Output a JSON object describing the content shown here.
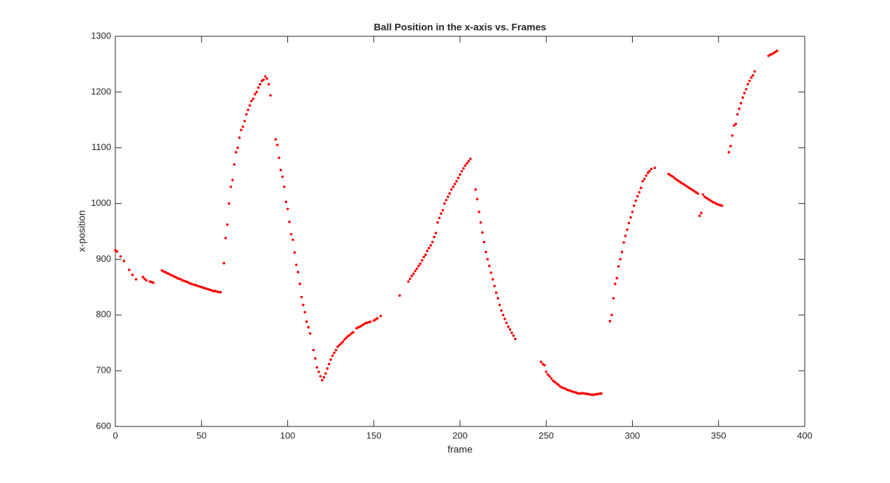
{
  "chart_data": {
    "type": "scatter",
    "title": "Ball Position in the x-axis vs. Frames",
    "x_label": "frame",
    "y_label": "x-position",
    "color": "#ff0000",
    "x": [
      0,
      1,
      3,
      5,
      8,
      10,
      12,
      16,
      17,
      18,
      20,
      21,
      22,
      27,
      28,
      29,
      30,
      31,
      32,
      33,
      34,
      35,
      36,
      37,
      38,
      39,
      40,
      41,
      42,
      43,
      44,
      45,
      46,
      47,
      48,
      49,
      50,
      51,
      52,
      53,
      54,
      55,
      56,
      57,
      58,
      59,
      60,
      61,
      63,
      64,
      65,
      66,
      67,
      68,
      69,
      70,
      71,
      72,
      73,
      74,
      75,
      76,
      77,
      78,
      79,
      80,
      81,
      82,
      83,
      84,
      85,
      86,
      87,
      88,
      89,
      90,
      93,
      94,
      95,
      96,
      97,
      98,
      99,
      100,
      101,
      102,
      103,
      104,
      105,
      106,
      107,
      108,
      109,
      110,
      111,
      112,
      113,
      115,
      116,
      117,
      118,
      119,
      120,
      121,
      122,
      123,
      124,
      125,
      126,
      127,
      128,
      129,
      130,
      131,
      132,
      133,
      134,
      135,
      136,
      137,
      138,
      140,
      141,
      142,
      143,
      144,
      145,
      146,
      147,
      148,
      150,
      151,
      152,
      154,
      165,
      170,
      171,
      172,
      173,
      174,
      175,
      176,
      177,
      178,
      179,
      180,
      181,
      182,
      183,
      184,
      185,
      186,
      187,
      188,
      189,
      190,
      191,
      192,
      193,
      194,
      195,
      196,
      197,
      198,
      199,
      200,
      201,
      202,
      203,
      204,
      205,
      206,
      209,
      210,
      211,
      212,
      213,
      214,
      215,
      216,
      217,
      218,
      219,
      220,
      221,
      222,
      223,
      224,
      225,
      226,
      227,
      228,
      229,
      230,
      231,
      232,
      247,
      248,
      249,
      250,
      251,
      252,
      253,
      254,
      255,
      256,
      257,
      258,
      259,
      260,
      261,
      262,
      263,
      264,
      265,
      266,
      267,
      268,
      269,
      270,
      271,
      272,
      273,
      274,
      275,
      276,
      277,
      278,
      279,
      280,
      281,
      282,
      287,
      288,
      289,
      290,
      291,
      292,
      293,
      294,
      295,
      296,
      297,
      298,
      299,
      300,
      301,
      302,
      303,
      304,
      305,
      306,
      307,
      308,
      309,
      310,
      311,
      313,
      321,
      322,
      323,
      324,
      325,
      326,
      327,
      328,
      329,
      330,
      331,
      332,
      333,
      334,
      335,
      336,
      337,
      338,
      339,
      340,
      341,
      342,
      343,
      344,
      345,
      346,
      347,
      348,
      349,
      350,
      351,
      352,
      356,
      357,
      358,
      359,
      360,
      361,
      362,
      363,
      364,
      365,
      366,
      367,
      368,
      369,
      370,
      371,
      379,
      380,
      381,
      382,
      383,
      384
    ],
    "values": [
      916,
      914,
      905,
      897,
      881,
      872,
      864,
      868,
      865,
      862,
      860,
      859,
      858,
      880,
      878,
      877,
      875,
      874,
      872,
      871,
      869,
      868,
      866,
      865,
      864,
      862,
      861,
      860,
      859,
      857,
      856,
      855,
      854,
      853,
      852,
      851,
      850,
      849,
      848,
      847,
      846,
      845,
      844,
      843,
      843,
      842,
      841,
      841,
      893,
      938,
      962,
      1000,
      1030,
      1042,
      1070,
      1092,
      1100,
      1118,
      1132,
      1138,
      1148,
      1160,
      1168,
      1176,
      1184,
      1188,
      1196,
      1200,
      1208,
      1214,
      1220,
      1222,
      1228,
      1224,
      1214,
      1194,
      1115,
      1105,
      1082,
      1060,
      1048,
      1030,
      1003,
      990,
      967,
      945,
      935,
      912,
      890,
      877,
      856,
      832,
      818,
      805,
      788,
      778,
      767,
      737,
      722,
      706,
      698,
      690,
      683,
      688,
      695,
      704,
      712,
      720,
      727,
      732,
      737,
      743,
      746,
      749,
      752,
      756,
      759,
      762,
      764,
      767,
      769,
      776,
      778,
      779,
      781,
      783,
      785,
      786,
      787,
      788,
      790,
      792,
      794,
      798,
      835,
      860,
      865,
      870,
      874,
      879,
      883,
      888,
      892,
      898,
      904,
      908,
      915,
      920,
      925,
      931,
      940,
      947,
      966,
      974,
      982,
      988,
      1000,
      1006,
      1012,
      1018,
      1025,
      1030,
      1035,
      1040,
      1046,
      1052,
      1058,
      1063,
      1068,
      1072,
      1076,
      1080,
      1025,
      1008,
      985,
      966,
      948,
      931,
      913,
      900,
      888,
      876,
      864,
      852,
      840,
      830,
      818,
      808,
      800,
      793,
      786,
      779,
      774,
      768,
      763,
      757,
      716,
      712,
      710,
      698,
      693,
      690,
      686,
      682,
      680,
      677,
      675,
      672,
      670,
      669,
      668,
      666,
      665,
      664,
      663,
      662,
      661,
      660,
      659,
      659,
      660,
      659,
      659,
      658,
      658,
      657,
      657,
      657,
      658,
      658,
      659,
      659,
      789,
      800,
      830,
      856,
      866,
      887,
      900,
      913,
      930,
      942,
      953,
      965,
      975,
      985,
      996,
      1005,
      1013,
      1020,
      1028,
      1040,
      1044,
      1050,
      1055,
      1058,
      1062,
      1064,
      1053,
      1051,
      1049,
      1047,
      1044,
      1042,
      1040,
      1038,
      1036,
      1034,
      1032,
      1030,
      1028,
      1026,
      1024,
      1022,
      1020,
      1018,
      978,
      983,
      1016,
      1012,
      1010,
      1008,
      1006,
      1004,
      1002,
      1001,
      999,
      998,
      997,
      996,
      1092,
      1103,
      1122,
      1140,
      1143,
      1160,
      1170,
      1180,
      1190,
      1198,
      1205,
      1214,
      1220,
      1226,
      1230,
      1237,
      1265,
      1267,
      1268,
      1270,
      1272,
      1274
    ],
    "xlim": [
      0,
      400
    ],
    "xticks": [
      0,
      50,
      100,
      150,
      200,
      250,
      300,
      350,
      400
    ],
    "ylim": [
      600,
      1300
    ],
    "yticks": [
      600,
      700,
      800,
      900,
      1000,
      1100,
      1200,
      1300
    ]
  }
}
